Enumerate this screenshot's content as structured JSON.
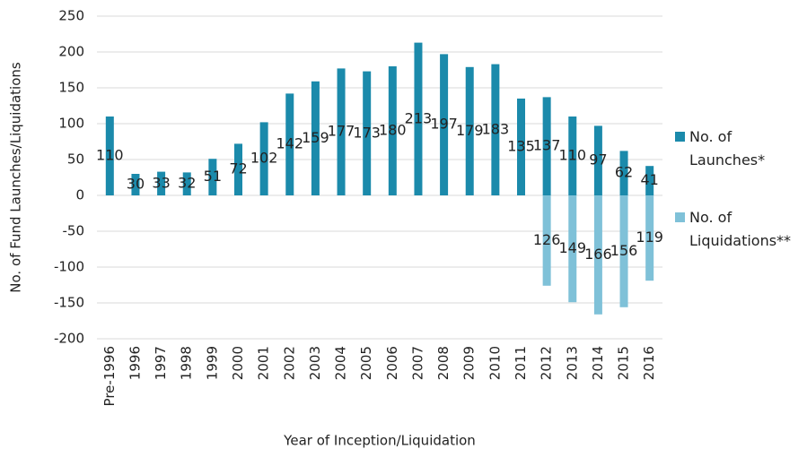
{
  "chart_data": {
    "type": "bar",
    "x_label": "Year of Inception/Liquidation",
    "y_label": "No. of Fund Launches/Liquidations",
    "categories": [
      "Pre-1996",
      "1996",
      "1997",
      "1998",
      "1999",
      "2000",
      "2001",
      "2002",
      "2003",
      "2004",
      "2005",
      "2006",
      "2007",
      "2008",
      "2009",
      "2010",
      "2011",
      "2012",
      "2013",
      "2014",
      "2015",
      "2016"
    ],
    "series": [
      {
        "name": "No. of Launches*",
        "color": "#1b8aab",
        "values": [
          110,
          30,
          33,
          32,
          51,
          72,
          102,
          142,
          159,
          177,
          173,
          180,
          213,
          197,
          179,
          183,
          135,
          137,
          110,
          97,
          62,
          41
        ]
      },
      {
        "name": "No. of Liquidations**",
        "color": "#7fc1d8",
        "values": [
          null,
          null,
          null,
          null,
          null,
          null,
          null,
          null,
          null,
          null,
          null,
          null,
          null,
          null,
          null,
          null,
          null,
          -126,
          -149,
          -166,
          -156,
          -119
        ],
        "value_labels": [
          null,
          null,
          null,
          null,
          null,
          null,
          null,
          null,
          null,
          null,
          null,
          null,
          null,
          null,
          null,
          null,
          null,
          "126",
          "149",
          "166",
          "156",
          "119"
        ]
      }
    ],
    "ylim": [
      -200,
      250
    ],
    "yticks": [
      250,
      200,
      150,
      100,
      50,
      0,
      -50,
      -100,
      -150,
      -200
    ],
    "grid": true
  }
}
